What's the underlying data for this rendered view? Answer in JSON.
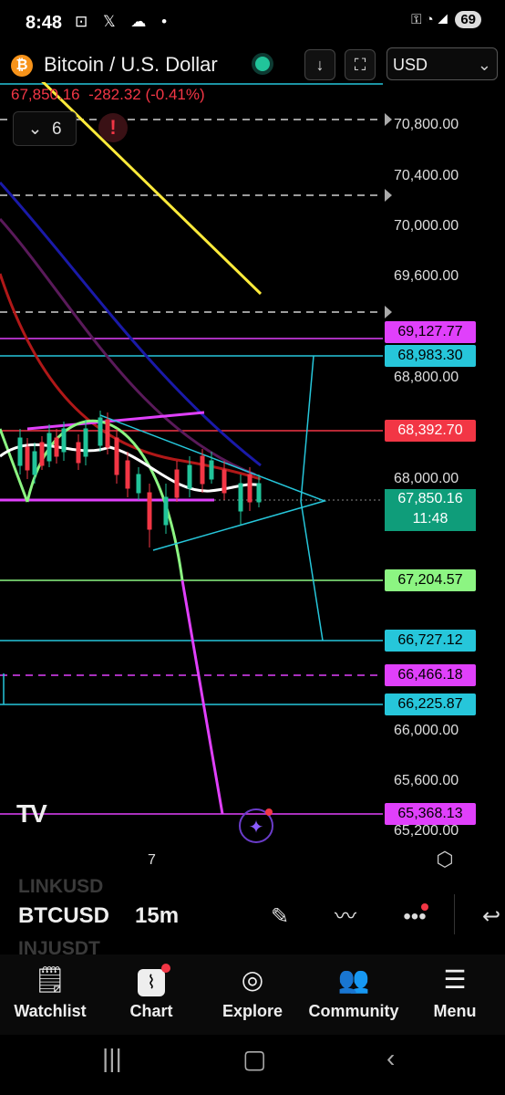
{
  "status_bar": {
    "time": "8:48",
    "battery": "69",
    "left_icons": "⊡ 𝕏 ☁ •",
    "right_icons": "⚿ ◔ ◢"
  },
  "header": {
    "title": "Bitcoin / U.S. Dollar",
    "currency": "USD",
    "price": "67,850.16",
    "change": "-282.32 (-0.41%)",
    "indicators_count": "6"
  },
  "chart": {
    "axis_labels": [
      "70,800.00",
      "70,400.00",
      "70,000.00",
      "69,600.00",
      "68,800.00",
      "68,000.00",
      "66,000.00",
      "65,600.00",
      "65,200.00"
    ],
    "price_tags": [
      {
        "value": "69,127.77",
        "bg": "#e040fb",
        "fg": "#000"
      },
      {
        "value": "68,983.30",
        "bg": "#26c6da",
        "fg": "#000"
      },
      {
        "value": "68,392.70",
        "bg": "#f23645",
        "fg": "#fff"
      },
      {
        "value": "67,204.57",
        "bg": "#8cf582",
        "fg": "#000"
      },
      {
        "value": "66,727.12",
        "bg": "#26c6da",
        "fg": "#000"
      },
      {
        "value": "66,466.18",
        "bg": "#e040fb",
        "fg": "#000"
      },
      {
        "value": "66,225.87",
        "bg": "#26c6da",
        "fg": "#000"
      },
      {
        "value": "65,368.13",
        "bg": "#e040fb",
        "fg": "#000"
      }
    ],
    "current_price": "67,850.16",
    "countdown": "11:48",
    "time_axis_label": "7",
    "logo": "TV"
  },
  "toolbar": {
    "ghost_above": "LINKUSD",
    "ticker": "BTCUSD",
    "interval": "15m",
    "ghost_below": "INJUSDT"
  },
  "bottom_nav": [
    {
      "label": "Watchlist",
      "icon": "watchlist-icon"
    },
    {
      "label": "Chart",
      "icon": "chart-icon"
    },
    {
      "label": "Explore",
      "icon": "compass-icon"
    },
    {
      "label": "Community",
      "icon": "community-icon"
    },
    {
      "label": "Menu",
      "icon": "menu-icon"
    }
  ],
  "colors": {
    "up": "#21c49a",
    "down": "#f23645",
    "accent": "#2962ff"
  }
}
